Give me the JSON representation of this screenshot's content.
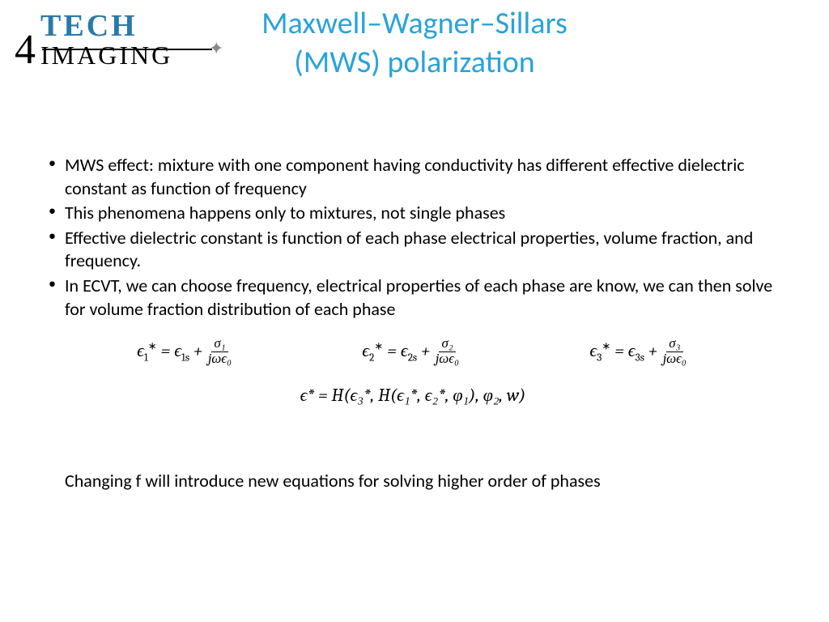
{
  "logo": {
    "top": "TECH",
    "four": "4",
    "bottom": "IMAGING"
  },
  "title_line1": "Maxwell–Wagner–Sillars",
  "title_line2": "(MWS) polarization",
  "bullets": [
    "MWS effect: mixture with one component having conductivity has different effective dielectric constant as function of frequency",
    "This phenomena happens only to mixtures, not single phases",
    "Effective dielectric constant is function of each phase electrical properties, volume fraction, and frequency.",
    "In ECVT, we can choose frequency, electrical properties of each phase are know, we can then solve for volume fraction distribution of each phase"
  ],
  "equations": {
    "eq1": {
      "lhs_base": "ϵ",
      "lhs_sub": "1",
      "rhs_a": "ϵ",
      "rhs_a_sub": "1s",
      "num": "σ₁",
      "den": "jωϵ₀"
    },
    "eq2": {
      "lhs_base": "ϵ",
      "lhs_sub": "2",
      "rhs_a": "ϵ",
      "rhs_a_sub": "2s",
      "num": "σ₂",
      "den": "jωϵ₀"
    },
    "eq3": {
      "lhs_base": "ϵ",
      "lhs_sub": "3",
      "rhs_a": "ϵ",
      "rhs_a_sub": "3s",
      "num": "σ₃",
      "den": "jωϵ₀"
    }
  },
  "eq_main": "ϵ* = H(ϵ₃*, H(ϵ₁*, ϵ₂*, φ₁), φ₂, w)",
  "footer": "Changing f will introduce new equations for solving higher order of phases",
  "colors": {
    "title": "#2aa3d8",
    "logo_blue": "#2a7aa8",
    "text": "#000000",
    "background": "#ffffff"
  }
}
